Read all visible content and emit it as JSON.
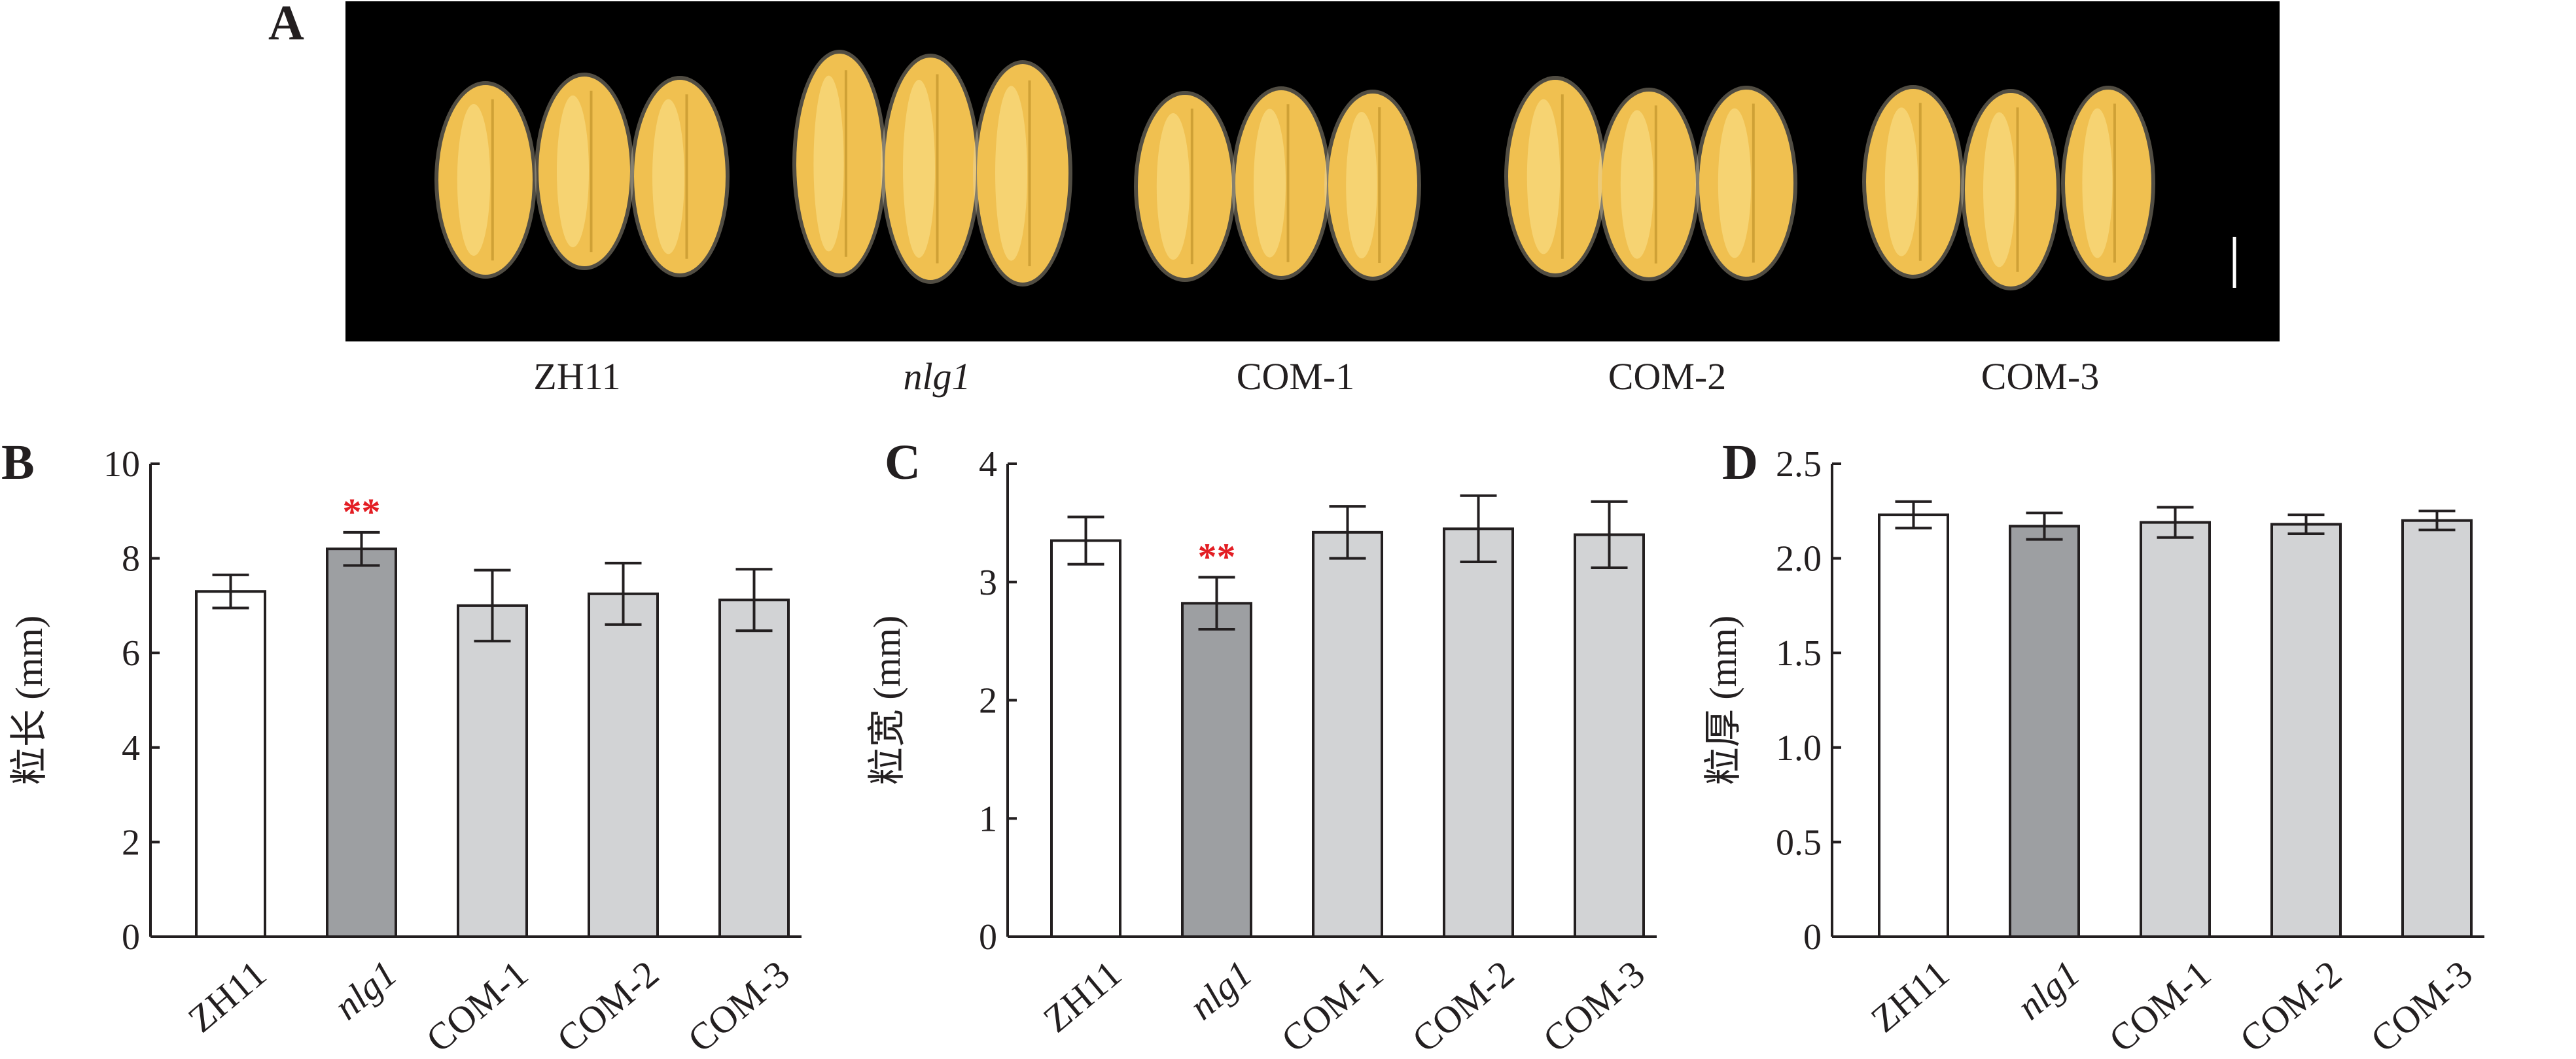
{
  "panel_a": {
    "letter": "A",
    "captions": [
      "ZH11",
      "nlg1",
      "COM-1",
      "COM-2",
      "COM-3"
    ],
    "italic_caption_index": 1,
    "photo_background": "#000000",
    "grain_color": "#f0c050"
  },
  "colors": {
    "ZH11": "#ffffff",
    "nlg1": "#9d9fa2",
    "COM": "#d2d3d5",
    "significance": "#e31e24"
  },
  "chart_data": [
    {
      "type": "bar",
      "panel": "B",
      "categories": [
        "ZH11",
        "nlg1",
        "COM-1",
        "COM-2",
        "COM-3"
      ],
      "values": [
        7.3,
        8.2,
        7.0,
        7.25,
        7.12
      ],
      "errors": [
        0.35,
        0.35,
        0.75,
        0.65,
        0.65
      ],
      "significance": [
        "",
        "**",
        "",
        "",
        ""
      ],
      "ylabel": "粒长 (mm)",
      "ylim": [
        0,
        10
      ],
      "yticks": [
        "0",
        "2",
        "4",
        "6",
        "8",
        "10"
      ],
      "ytick_values": [
        0,
        2,
        4,
        6,
        8,
        10
      ]
    },
    {
      "type": "bar",
      "panel": "C",
      "categories": [
        "ZH11",
        "nlg1",
        "COM-1",
        "COM-2",
        "COM-3"
      ],
      "values": [
        3.35,
        2.82,
        3.42,
        3.45,
        3.4
      ],
      "errors": [
        0.2,
        0.22,
        0.22,
        0.28,
        0.28
      ],
      "significance": [
        "",
        "**",
        "",
        "",
        ""
      ],
      "ylabel": "粒宽 (mm)",
      "ylim": [
        0,
        4
      ],
      "yticks": [
        "0",
        "1",
        "2",
        "3",
        "4"
      ],
      "ytick_values": [
        0,
        1,
        2,
        3,
        4
      ]
    },
    {
      "type": "bar",
      "panel": "D",
      "categories": [
        "ZH11",
        "nlg1",
        "COM-1",
        "COM-2",
        "COM-3"
      ],
      "values": [
        2.23,
        2.17,
        2.19,
        2.18,
        2.2
      ],
      "errors": [
        0.07,
        0.07,
        0.08,
        0.05,
        0.05
      ],
      "significance": [
        "",
        "",
        "",
        "",
        ""
      ],
      "ylabel": "粒厚 (mm)",
      "ylim": [
        0,
        2.5
      ],
      "yticks": [
        "0",
        "0.5",
        "1.0",
        "1.5",
        "2.0",
        "2.5"
      ],
      "ytick_values": [
        0,
        0.5,
        1.0,
        1.5,
        2.0,
        2.5
      ]
    }
  ]
}
